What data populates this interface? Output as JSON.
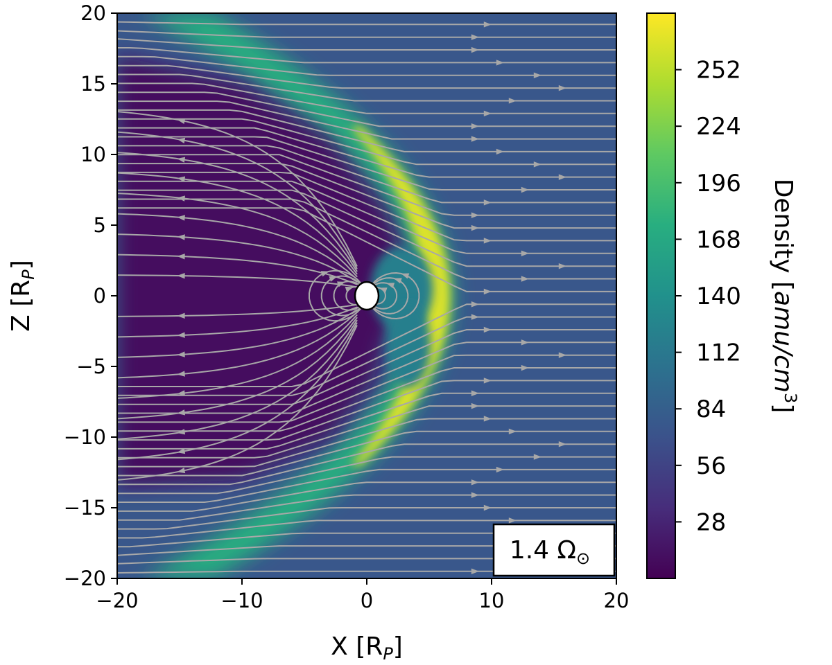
{
  "chart_data": {
    "type": "heatmap",
    "description_kind": "density map with streamlines",
    "title": "",
    "xlabel": "X [R",
    "xlabel_sub": "P",
    "xlabel_close": "]",
    "ylabel": "Z [R",
    "ylabel_sub": "P",
    "ylabel_close": "]",
    "xlim": [
      -20,
      20
    ],
    "ylim": [
      -20,
      20
    ],
    "x_ticks": [
      -20,
      -10,
      0,
      10,
      20
    ],
    "x_tick_labels": [
      "−20",
      "−10",
      "0",
      "10",
      "20"
    ],
    "y_ticks": [
      -20,
      -15,
      -10,
      -5,
      0,
      5,
      10,
      15,
      20
    ],
    "y_tick_labels": [
      "−20",
      "−15",
      "−10",
      "−5",
      "0",
      "5",
      "10",
      "15",
      "20"
    ],
    "colorbar": {
      "label": "Density [",
      "label_unit": "amu/cm",
      "label_exp": "3",
      "label_close": "]",
      "range": [
        0,
        280
      ],
      "ticks": [
        28,
        56,
        84,
        112,
        140,
        168,
        196,
        224,
        252
      ],
      "tick_labels": [
        "28",
        "56",
        "84",
        "112",
        "140",
        "168",
        "196",
        "224",
        "252"
      ],
      "colormap": "viridis"
    },
    "annotation": "1.4 Ω",
    "annotation_sub": "⊙",
    "regions": {
      "solar_wind_density": 75,
      "bow_shock_peak_density": 265,
      "magnetosphere_density": 10,
      "bow_shock_nose_x": 6.5,
      "planet_x": 0,
      "planet_z": 0
    },
    "streamline_color": "#a8a8a8",
    "planet_color": "#ffffff"
  }
}
